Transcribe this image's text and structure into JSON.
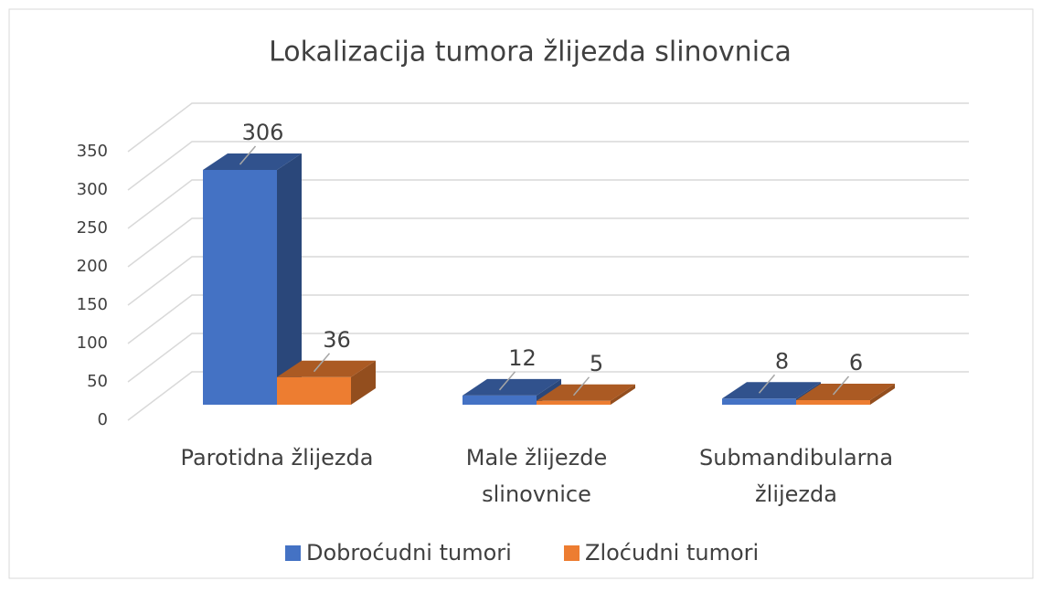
{
  "chart_data": {
    "type": "bar3d",
    "title": "Lokalizacija tumora žlijezda slinovnica",
    "categories": [
      "Parotidna žlijezda",
      "Male žlijezde slinovnice",
      "Submandibularna žlijezda"
    ],
    "series": [
      {
        "name": "Dobroćudni tumori",
        "color": "#4472c4",
        "values": [
          306,
          12,
          8
        ]
      },
      {
        "name": "Zloćudni tumori",
        "color": "#ed7d31",
        "values": [
          36,
          5,
          6
        ]
      }
    ],
    "ylim": [
      0,
      350
    ],
    "yticks": [
      0,
      50,
      100,
      150,
      200,
      250,
      300,
      350
    ],
    "grid": true,
    "legend": "bottom"
  }
}
